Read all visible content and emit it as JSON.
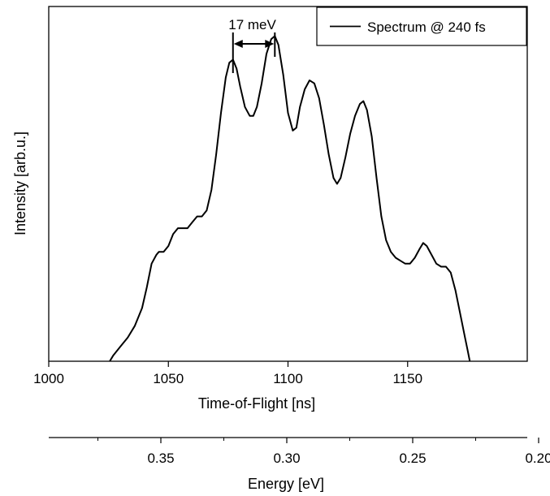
{
  "chart_data": [
    {
      "type": "line",
      "title": "",
      "xlabel": "Time-of-Flight [ns]",
      "ylabel": "Intensity [arb.u.]",
      "xlim": [
        1000,
        1200
      ],
      "ylim": [
        0,
        1.2
      ],
      "x_ticks": [
        1000,
        1050,
        1100,
        1150
      ],
      "y_ticks_shown": false,
      "grid": false,
      "legend": {
        "position": "top-right",
        "entries": [
          "Spectrum @ 240 fs"
        ]
      },
      "series": [
        {
          "name": "Spectrum @ 240 fs",
          "color": "#000000",
          "points": [
            [
              1025.5,
              0.0
            ],
            [
              1027,
              0.02
            ],
            [
              1030,
              0.05
            ],
            [
              1033,
              0.08
            ],
            [
              1036,
              0.12
            ],
            [
              1039,
              0.18
            ],
            [
              1041,
              0.25
            ],
            [
              1043,
              0.33
            ],
            [
              1045,
              0.36
            ],
            [
              1046,
              0.37
            ],
            [
              1048,
              0.37
            ],
            [
              1050,
              0.39
            ],
            [
              1052,
              0.43
            ],
            [
              1054,
              0.45
            ],
            [
              1056,
              0.45
            ],
            [
              1058,
              0.45
            ],
            [
              1060,
              0.47
            ],
            [
              1062,
              0.49
            ],
            [
              1064,
              0.49
            ],
            [
              1066,
              0.51
            ],
            [
              1068,
              0.58
            ],
            [
              1070,
              0.7
            ],
            [
              1072,
              0.84
            ],
            [
              1074,
              0.96
            ],
            [
              1075.5,
              1.01
            ],
            [
              1077,
              1.02
            ],
            [
              1078.5,
              0.99
            ],
            [
              1080,
              0.93
            ],
            [
              1082,
              0.86
            ],
            [
              1084,
              0.83
            ],
            [
              1085.5,
              0.83
            ],
            [
              1087,
              0.86
            ],
            [
              1089,
              0.94
            ],
            [
              1091,
              1.04
            ],
            [
              1093,
              1.09
            ],
            [
              1094.5,
              1.1
            ],
            [
              1096,
              1.07
            ],
            [
              1098,
              0.97
            ],
            [
              1100,
              0.84
            ],
            [
              1102,
              0.78
            ],
            [
              1103.5,
              0.79
            ],
            [
              1105,
              0.86
            ],
            [
              1107,
              0.92
            ],
            [
              1109,
              0.95
            ],
            [
              1111,
              0.94
            ],
            [
              1113,
              0.89
            ],
            [
              1115,
              0.8
            ],
            [
              1117,
              0.7
            ],
            [
              1119,
              0.62
            ],
            [
              1120.5,
              0.6
            ],
            [
              1122,
              0.62
            ],
            [
              1124,
              0.69
            ],
            [
              1126,
              0.77
            ],
            [
              1128,
              0.83
            ],
            [
              1130,
              0.87
            ],
            [
              1131.5,
              0.88
            ],
            [
              1133,
              0.85
            ],
            [
              1135,
              0.76
            ],
            [
              1137,
              0.62
            ],
            [
              1139,
              0.49
            ],
            [
              1141,
              0.41
            ],
            [
              1143,
              0.37
            ],
            [
              1145,
              0.35
            ],
            [
              1147,
              0.34
            ],
            [
              1149,
              0.33
            ],
            [
              1151,
              0.33
            ],
            [
              1153,
              0.35
            ],
            [
              1155,
              0.38
            ],
            [
              1156.5,
              0.4
            ],
            [
              1158,
              0.39
            ],
            [
              1160,
              0.36
            ],
            [
              1162,
              0.33
            ],
            [
              1164,
              0.32
            ],
            [
              1166,
              0.32
            ],
            [
              1168,
              0.3
            ],
            [
              1170,
              0.24
            ],
            [
              1172,
              0.16
            ],
            [
              1174,
              0.08
            ],
            [
              1175,
              0.04
            ],
            [
              1176,
              0.0
            ]
          ]
        }
      ],
      "annotation": {
        "text": "17 meV",
        "x_start": 1077,
        "x_end": 1094.5
      }
    },
    {
      "type": "line",
      "xlabel": "Energy [eV]",
      "x_ticks": [
        0.35,
        0.3,
        0.25,
        0.2
      ],
      "x_tick_labels": [
        "0.35",
        "0.30",
        "0.25",
        "0.20"
      ],
      "x_minor_ticks": [
        0.375,
        0.325,
        0.275,
        0.225
      ]
    }
  ]
}
